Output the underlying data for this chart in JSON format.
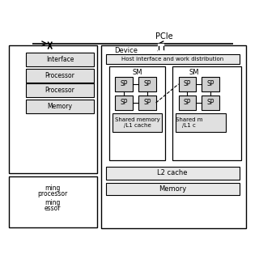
{
  "bg_color": "#ffffff",
  "pcie_label": "PCIe",
  "device_label": "Device",
  "host_iface_label": "Host interface and work distribution",
  "sm1_label": "SM",
  "sm2_label": "SM",
  "sp_label": "SP",
  "shared_mem_label1": "Shared memory",
  "shared_mem_label2": "/L1 cache",
  "shared_mem2_label1": "Shared m",
  "shared_mem2_label2": "/L1 c",
  "l2_label": "L2 cache",
  "mem_label": "Memory",
  "iface_label": "Interface",
  "proc1_label": "Processor",
  "proc2_label": "Processor",
  "host_mem_label": "Memory",
  "stream1_line1": "ming",
  "stream1_line2": "processor",
  "stream2_line1": "ming",
  "stream2_line2": "essor",
  "fig_width": 3.2,
  "fig_height": 3.2,
  "dpi": 100
}
